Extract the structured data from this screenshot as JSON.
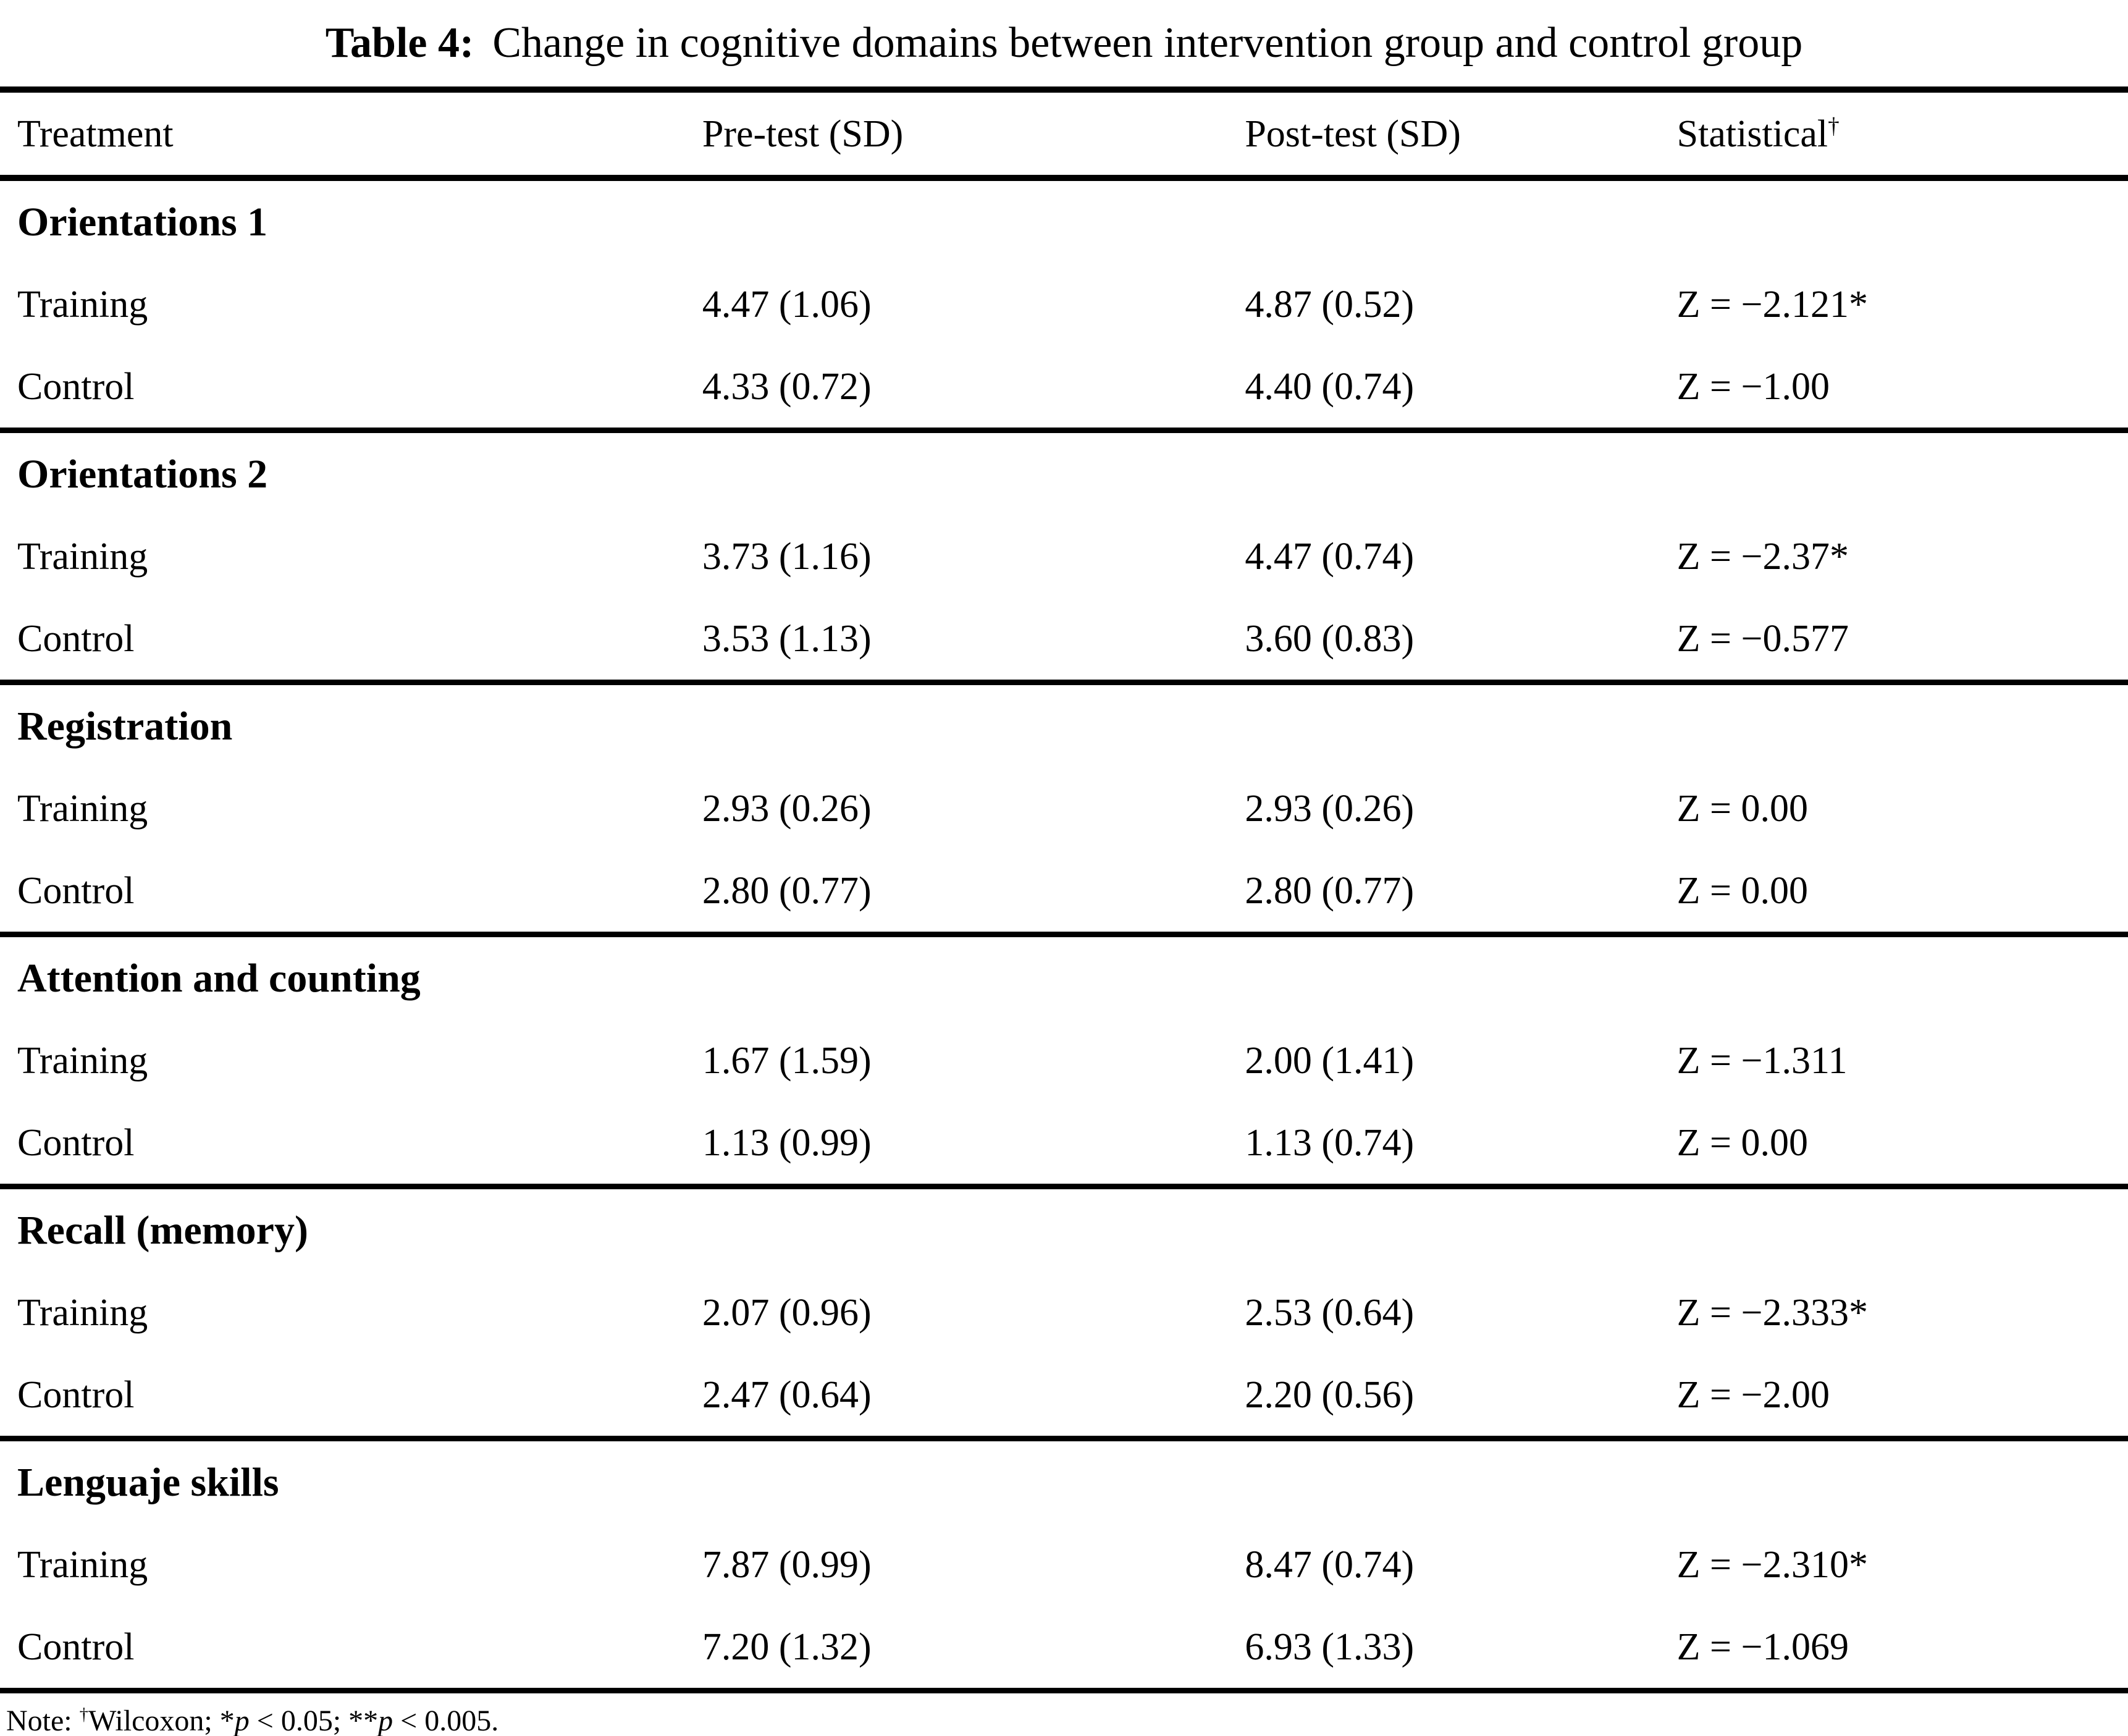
{
  "caption": {
    "label": "Table 4:",
    "text": "Change in cognitive domains between intervention group and control group"
  },
  "columns": {
    "treatment": "Treatment",
    "pretest": "Pre-test (SD)",
    "posttest": "Post-test (SD)",
    "statistical": "Statistical",
    "statistical_sup": "†"
  },
  "sections": [
    {
      "name": "Orientations 1",
      "rows": [
        {
          "treatment": "Training",
          "pre": "4.47 (1.06)",
          "post": "4.87 (0.52)",
          "stat": "Z = −2.121*"
        },
        {
          "treatment": "Control",
          "pre": "4.33 (0.72)",
          "post": "4.40 (0.74)",
          "stat": "Z = −1.00"
        }
      ]
    },
    {
      "name": "Orientations 2",
      "rows": [
        {
          "treatment": "Training",
          "pre": "3.73 (1.16)",
          "post": "4.47 (0.74)",
          "stat": "Z = −2.37*"
        },
        {
          "treatment": "Control",
          "pre": "3.53 (1.13)",
          "post": "3.60 (0.83)",
          "stat": "Z = −0.577"
        }
      ]
    },
    {
      "name": "Registration",
      "rows": [
        {
          "treatment": "Training",
          "pre": "2.93 (0.26)",
          "post": "2.93 (0.26)",
          "stat": "Z = 0.00"
        },
        {
          "treatment": "Control",
          "pre": "2.80 (0.77)",
          "post": "2.80 (0.77)",
          "stat": "Z = 0.00"
        }
      ]
    },
    {
      "name": "Attention and counting",
      "rows": [
        {
          "treatment": "Training",
          "pre": "1.67 (1.59)",
          "post": "2.00 (1.41)",
          "stat": "Z = −1.311"
        },
        {
          "treatment": "Control",
          "pre": "1.13 (0.99)",
          "post": "1.13 (0.74)",
          "stat": "Z = 0.00"
        }
      ]
    },
    {
      "name": "Recall (memory)",
      "rows": [
        {
          "treatment": "Training",
          "pre": "2.07 (0.96)",
          "post": "2.53 (0.64)",
          "stat": "Z = −2.333*"
        },
        {
          "treatment": "Control",
          "pre": "2.47 (0.64)",
          "post": "2.20 (0.56)",
          "stat": "Z = −2.00"
        }
      ]
    },
    {
      "name": "Lenguaje skills",
      "rows": [
        {
          "treatment": "Training",
          "pre": "7.87 (0.99)",
          "post": "8.47 (0.74)",
          "stat": "Z = −2.310*"
        },
        {
          "treatment": "Control",
          "pre": "7.20 (1.32)",
          "post": "6.93 (1.33)",
          "stat": "Z = −1.069"
        }
      ]
    }
  ],
  "note": {
    "label": "Note: ",
    "dagger": "†",
    "wilcoxon": "Wilcoxon; *",
    "p1": "p",
    "lt1": " < 0.05; **",
    "p2": "p",
    "lt2": " < 0.005."
  }
}
